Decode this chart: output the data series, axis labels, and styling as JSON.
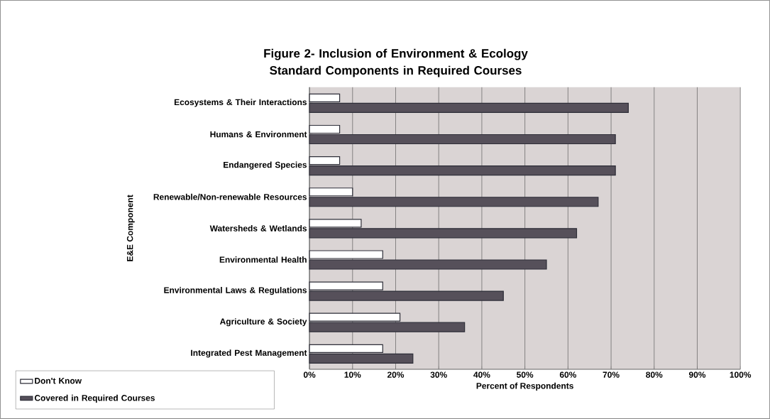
{
  "chart_data": {
    "type": "bar",
    "orientation": "horizontal",
    "title": "Figure 2- Inclusion of Environment & Ecology Standard Components in Required Courses",
    "xlabel": "Percent of Respondents",
    "ylabel": "E&E Component",
    "categories": [
      "Ecosystems & Their Interactions",
      "Humans & Environment",
      "Endangered Species",
      "Renewable/Non-renewable Resources",
      "Watersheds & Wetlands",
      "Environmental Health",
      "Environmental Laws & Regulations",
      "Agriculture & Society",
      "Integrated Pest Management"
    ],
    "series": [
      {
        "name": "Don't Know",
        "color": "#ffffff",
        "values": [
          7,
          7,
          7,
          10,
          12,
          17,
          17,
          21,
          17
        ]
      },
      {
        "name": "Covered in Required Courses",
        "color": "#56505a",
        "values": [
          74,
          71,
          71,
          67,
          62,
          55,
          45,
          36,
          24
        ]
      }
    ],
    "xlim": [
      0,
      100
    ],
    "xticks": [
      {
        "value": 0,
        "label": "0%"
      },
      {
        "value": 10,
        "label": "10%"
      },
      {
        "value": 20,
        "label": "20%"
      },
      {
        "value": 30,
        "label": "30%"
      },
      {
        "value": 40,
        "label": "40%"
      },
      {
        "value": 50,
        "label": "50%"
      },
      {
        "value": 60,
        "label": "60%"
      },
      {
        "value": 70,
        "label": "70%"
      },
      {
        "value": 80,
        "label": "80%"
      },
      {
        "value": 90,
        "label": "90%"
      },
      {
        "value": 100,
        "label": "100%"
      }
    ],
    "grid": "x",
    "legend": "bottom left"
  }
}
